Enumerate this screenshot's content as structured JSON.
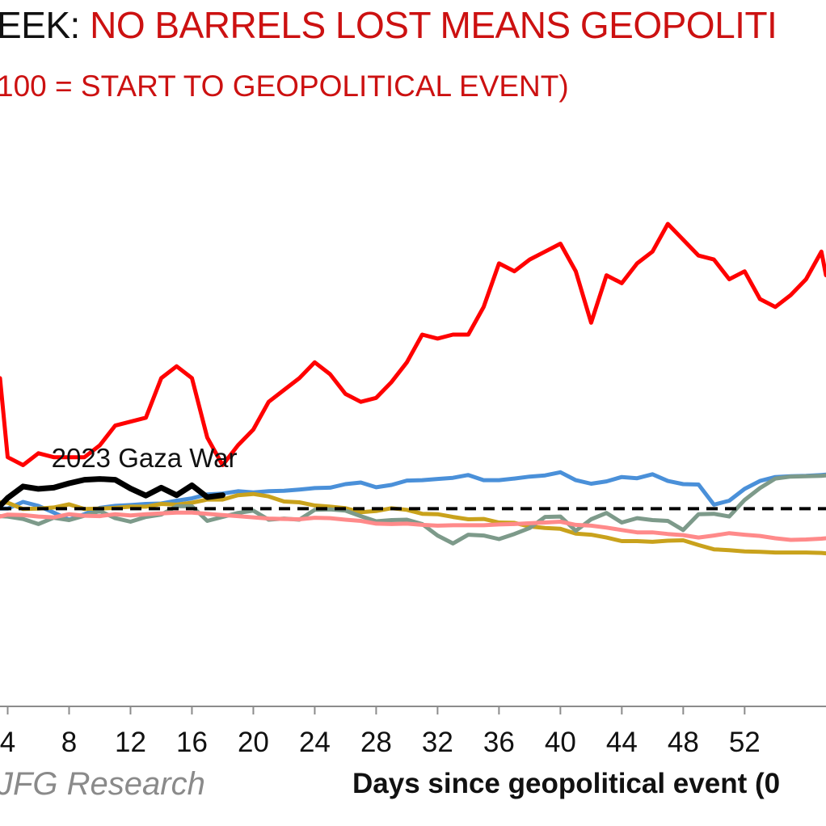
{
  "header": {
    "title_lead": "EEK:",
    "title_main": "NO BARRELS LOST MEANS GEOPOLITI",
    "subtitle": "100 = START TO GEOPOLITICAL EVENT)"
  },
  "footer": {
    "source": "JFG Research",
    "xlabel": "Days since geopolitical event (0"
  },
  "chart_data": {
    "type": "line",
    "xlim": [
      3.5,
      57.3
    ],
    "ylim": [
      50,
      200
    ],
    "x_ticks": [
      4,
      8,
      12,
      16,
      20,
      24,
      28,
      32,
      36,
      40,
      44,
      48,
      52
    ],
    "x_tick_labels": [
      "4",
      "8",
      "12",
      "16",
      "20",
      "24",
      "28",
      "32",
      "36",
      "40",
      "44",
      "48",
      "52"
    ],
    "reference_line": {
      "y": 100,
      "style": "dashed",
      "color": "#000000"
    },
    "annotations": [
      {
        "text": "2023 Gaza War",
        "x": 12.9,
        "y": 110.5
      }
    ],
    "series": [
      {
        "color": "#ff0000",
        "x": [
          3.5,
          4,
          5,
          6,
          7,
          8,
          9,
          10,
          11,
          12,
          13,
          14,
          15,
          16,
          17,
          18,
          19,
          20,
          21,
          22,
          23,
          24,
          25,
          26,
          27,
          28,
          29,
          30,
          31,
          32,
          33,
          34,
          35,
          36,
          37,
          38,
          39,
          40,
          41,
          42,
          43,
          44,
          45,
          46,
          47,
          48,
          49,
          50,
          51,
          52,
          53,
          54,
          55,
          56,
          57,
          57.3
        ],
        "y": [
          133,
          113,
          111,
          114,
          113,
          113,
          113,
          116,
          121,
          122,
          123,
          133,
          136,
          133,
          118,
          111,
          116,
          120,
          127,
          130,
          133,
          137,
          134,
          129,
          127,
          128,
          132,
          137,
          144,
          143,
          144,
          144,
          151,
          162,
          160,
          163,
          165,
          167,
          160,
          147,
          159,
          157,
          162,
          165,
          172,
          168,
          164,
          163,
          158,
          160,
          153,
          151,
          154,
          158,
          165,
          159
        ]
      },
      {
        "color": "#4a90d9",
        "x": [
          3.5,
          4,
          5,
          6,
          7,
          8,
          9,
          10,
          11,
          12,
          13,
          14,
          15,
          16,
          17,
          18,
          19,
          20,
          21,
          22,
          23,
          24,
          25,
          26,
          27,
          28,
          29,
          30,
          31,
          32,
          33,
          34,
          35,
          36,
          37,
          38,
          39,
          40,
          41,
          42,
          43,
          44,
          45,
          46,
          47,
          48,
          49,
          50,
          51,
          52,
          53,
          54,
          55,
          56,
          57,
          57.3
        ],
        "y": [
          100,
          100,
          101.7,
          100.7,
          99.0,
          97.2,
          98.6,
          100.2,
          100.7,
          100.9,
          101.2,
          101.3,
          102.0,
          102.6,
          103.6,
          103.8,
          104.4,
          104.1,
          104.4,
          104.5,
          104.8,
          105.2,
          105.3,
          106.2,
          106.6,
          105.4,
          106.0,
          107.1,
          107.2,
          107.5,
          107.8,
          108.5,
          107.2,
          107.2,
          107.6,
          108.1,
          108.4,
          109.2,
          107.2,
          106.3,
          106.9,
          108.0,
          107.7,
          108.7,
          107.0,
          106.2,
          106.1,
          101.0,
          102.0,
          105.0,
          107.0,
          108.0,
          108.2,
          108.3,
          108.5,
          108.6
        ]
      },
      {
        "color": "#c9a21c",
        "x": [
          3.5,
          4,
          5,
          6,
          7,
          8,
          9,
          10,
          11,
          12,
          13,
          14,
          15,
          16,
          17,
          18,
          19,
          20,
          21,
          22,
          23,
          24,
          25,
          26,
          27,
          28,
          29,
          30,
          31,
          32,
          33,
          34,
          35,
          36,
          37,
          38,
          39,
          40,
          41,
          42,
          43,
          44,
          45,
          46,
          47,
          48,
          49,
          50,
          51,
          52,
          53,
          54,
          55,
          56,
          57,
          57.3
        ],
        "y": [
          101.6,
          101.5,
          99.9,
          100.0,
          100.3,
          101.1,
          99.9,
          100.0,
          100.2,
          100.5,
          100.5,
          101.2,
          101.0,
          101.5,
          102.3,
          102.3,
          103.4,
          103.7,
          103.1,
          101.8,
          101.6,
          100.8,
          100.5,
          100.1,
          99.1,
          99.4,
          100.1,
          99.7,
          98.7,
          98.6,
          97.9,
          97.3,
          97.4,
          96.5,
          96.4,
          95.5,
          95.1,
          94.9,
          93.7,
          93.4,
          92.7,
          91.8,
          91.8,
          91.6,
          91.9,
          92.0,
          90.8,
          89.7,
          89.5,
          89.2,
          89.1,
          88.9,
          88.9,
          88.9,
          88.8,
          88.7
        ]
      },
      {
        "color": "#7d9a8a",
        "x": [
          3.5,
          4,
          5,
          6,
          7,
          8,
          9,
          10,
          11,
          12,
          13,
          14,
          15,
          16,
          17,
          18,
          19,
          20,
          21,
          22,
          23,
          24,
          25,
          26,
          27,
          28,
          29,
          30,
          31,
          32,
          33,
          34,
          35,
          36,
          37,
          38,
          39,
          40,
          41,
          42,
          43,
          44,
          45,
          46,
          47,
          48,
          49,
          50,
          51,
          52,
          53,
          54,
          55,
          56,
          57,
          57.3
        ],
        "y": [
          98.1,
          98.0,
          97.4,
          96.1,
          97.7,
          97.1,
          98.2,
          99.4,
          97.6,
          96.7,
          97.9,
          98.5,
          100.6,
          100.6,
          96.9,
          97.9,
          98.9,
          99.5,
          97.2,
          97.5,
          97.2,
          99.7,
          99.8,
          99.5,
          98.1,
          96.8,
          97.1,
          97.2,
          96.1,
          93.2,
          91.2,
          93.4,
          93.2,
          92.3,
          93.6,
          95.1,
          97.9,
          98.0,
          94.4,
          97.3,
          98.9,
          96.5,
          97.6,
          97.1,
          96.9,
          94.6,
          98.6,
          98.7,
          98.0,
          102.2,
          105.2,
          107.6,
          108.1,
          108.2,
          108.3,
          108.4
        ]
      },
      {
        "color": "#ff8a8a",
        "x": [
          3.5,
          4,
          5,
          6,
          7,
          8,
          9,
          10,
          11,
          12,
          13,
          14,
          15,
          16,
          17,
          18,
          19,
          20,
          21,
          22,
          23,
          24,
          25,
          26,
          27,
          28,
          29,
          30,
          31,
          32,
          33,
          34,
          35,
          36,
          37,
          38,
          39,
          40,
          41,
          42,
          43,
          44,
          45,
          46,
          47,
          48,
          49,
          50,
          51,
          52,
          53,
          54,
          55,
          56,
          57,
          57.3
        ],
        "y": [
          98.0,
          98.5,
          98.4,
          98.0,
          97.8,
          98.6,
          98.2,
          98.1,
          98.6,
          98.3,
          98.6,
          98.8,
          99.0,
          99.0,
          98.7,
          98.4,
          98.1,
          97.8,
          97.5,
          97.4,
          97.3,
          97.7,
          97.6,
          97.2,
          96.9,
          96.2,
          96.1,
          96.2,
          95.9,
          95.7,
          95.8,
          95.8,
          95.8,
          96.0,
          96.1,
          96.3,
          96.5,
          96.7,
          95.9,
          95.7,
          95.2,
          94.6,
          94.0,
          94.0,
          93.6,
          93.3,
          92.7,
          93.2,
          93.8,
          93.4,
          93.1,
          92.5,
          92.1,
          92.2,
          92.4,
          92.5
        ]
      },
      {
        "color": "#000000",
        "width": 7,
        "x": [
          3.5,
          4,
          5,
          6,
          7,
          8,
          9,
          10,
          11,
          12,
          13,
          14,
          15,
          16,
          17,
          18
        ],
        "y": [
          100.7,
          102.7,
          105.6,
          105.0,
          105.3,
          106.4,
          107.3,
          107.5,
          107.3,
          105.1,
          103.3,
          105.3,
          103.4,
          105.9,
          102.9,
          103.4
        ]
      }
    ]
  }
}
